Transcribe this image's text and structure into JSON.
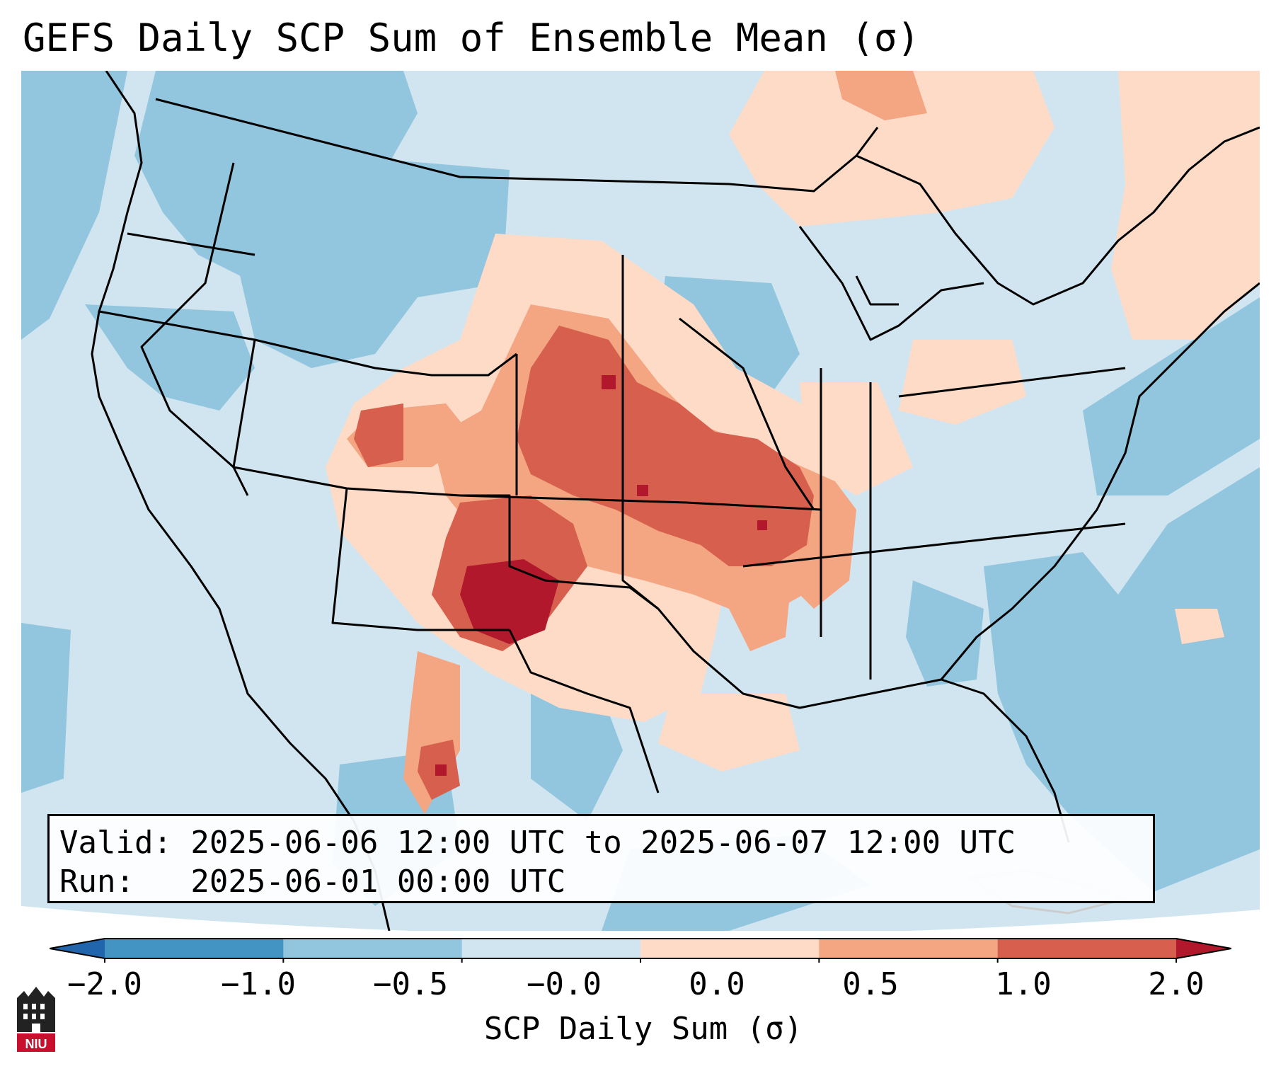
{
  "title": "GEFS Daily SCP Sum of Ensemble Mean (σ)",
  "info": {
    "valid": "Valid: 2025-06-06 12:00 UTC to 2025-06-07 12:00 UTC",
    "run": "Run:   2025-06-01 00:00 UTC"
  },
  "colorbar": {
    "label": "SCP Daily Sum (σ)",
    "ticks": [
      "−2.0",
      "−1.0",
      "−0.5",
      "−0.0",
      "0.0",
      "0.5",
      "1.0",
      "2.0"
    ],
    "colors": [
      "#4393c3",
      "#92c5de",
      "#d1e5f0",
      "#fddbc7",
      "#f4a582",
      "#d6604d"
    ],
    "under_color": "#2166ac",
    "over_color": "#b2182b"
  },
  "logo": {
    "text": "NIU"
  },
  "field_colors": {
    "neutral_negative": "#d1e5f0",
    "negative": "#92c5de",
    "very_negative": "#4393c3",
    "slight_positive": "#fddbc7",
    "positive": "#f4a582",
    "strong_positive": "#d6604d",
    "extreme_positive": "#b2182b"
  }
}
